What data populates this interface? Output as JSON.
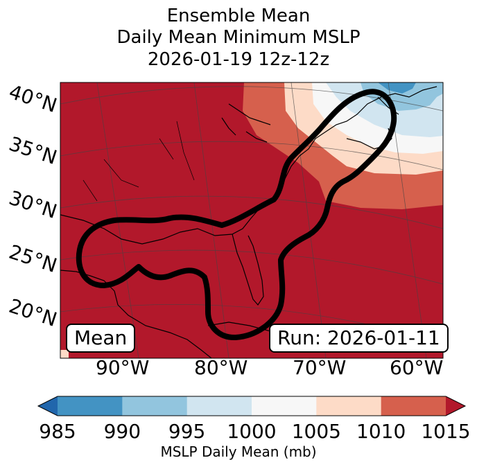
{
  "title": {
    "line1": "Ensemble Mean",
    "line2": "Daily Mean Minimum MSLP",
    "line3": "2026-01-19 12z-12z"
  },
  "map": {
    "lat_labels": [
      "40°N",
      "35°N",
      "30°N",
      "25°N",
      "20°N"
    ],
    "lon_labels": [
      "90°W",
      "80°W",
      "70°W",
      "60°W"
    ],
    "mean_box": "Mean",
    "run_box": "Run: 2026-01-11"
  },
  "colorbar": {
    "ticks": [
      "985",
      "990",
      "995",
      "1000",
      "1005",
      "1010",
      "1015"
    ],
    "label": "MSLP Daily Mean (mb)",
    "colors": [
      "#2166ac",
      "#4393c3",
      "#92c5de",
      "#d1e5f0",
      "#f7f7f7",
      "#fddbc7",
      "#d6604d",
      "#b2182b"
    ]
  }
}
